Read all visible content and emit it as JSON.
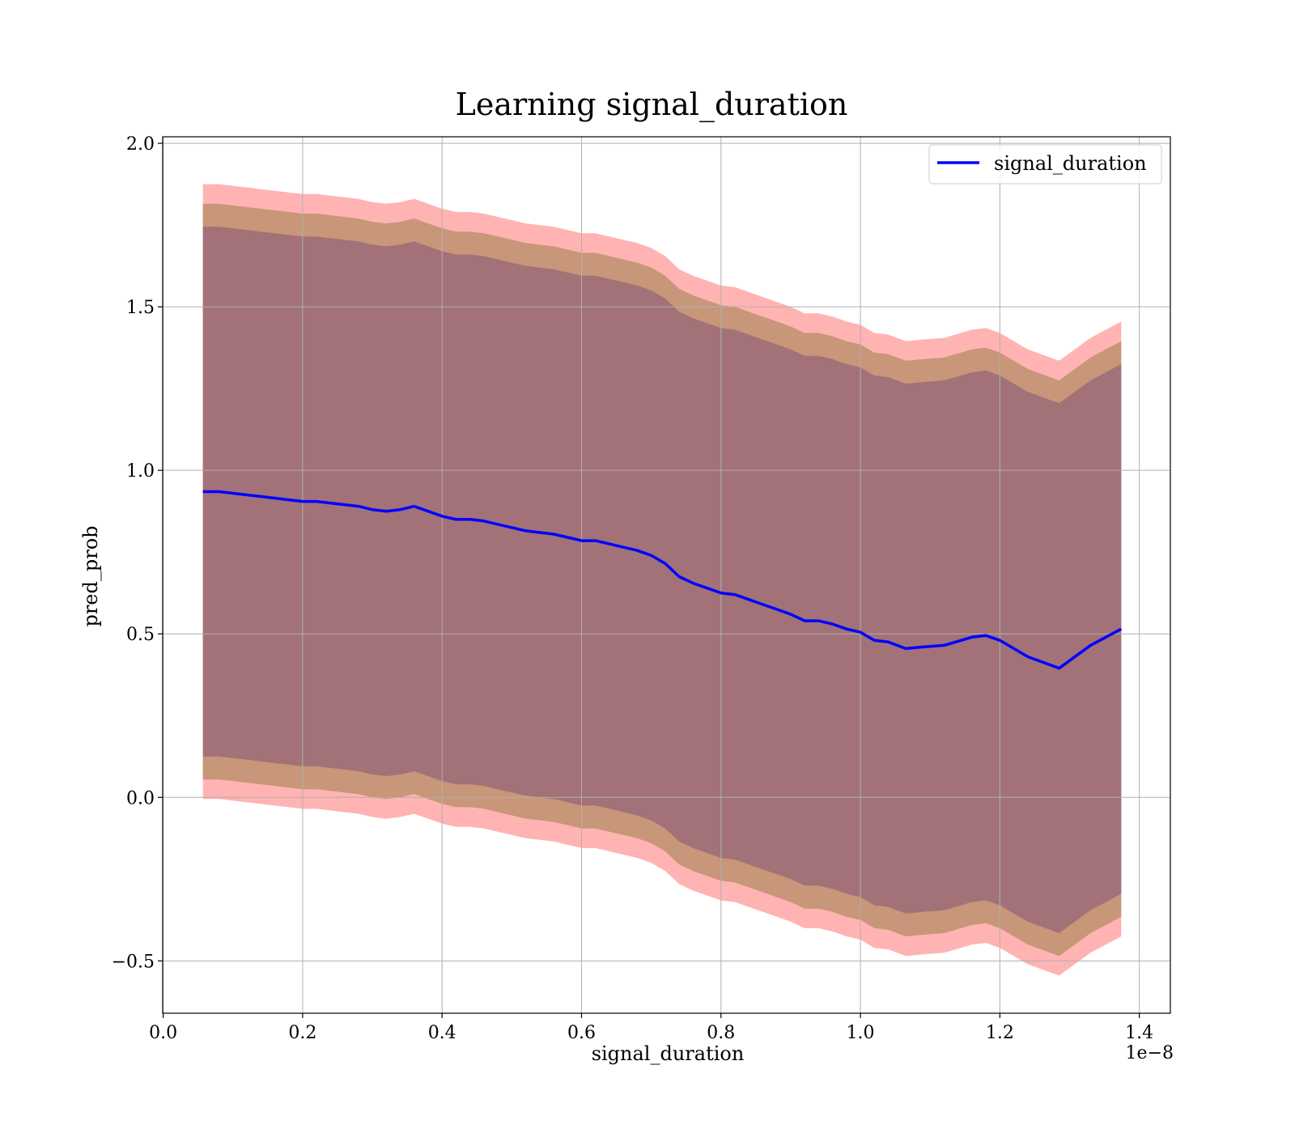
{
  "chart_data": {
    "type": "area",
    "title": "Learning signal_duration",
    "xlabel": "signal_duration",
    "ylabel": "pred_prob",
    "x_offset_label": "1e−8",
    "xlim": [
      -0.0007,
      1.4445
    ],
    "ylim": [
      -0.66,
      2.02
    ],
    "x_ticks": [
      0.0,
      0.2,
      0.4,
      0.6,
      0.8,
      1.0,
      1.2,
      1.4
    ],
    "x_tick_labels": [
      "0.0",
      "0.2",
      "0.4",
      "0.6",
      "0.8",
      "1.0",
      "1.2",
      "1.4"
    ],
    "y_ticks": [
      -0.5,
      0.0,
      0.5,
      1.0,
      1.5,
      2.0
    ],
    "y_tick_labels": [
      "−0.5",
      "0.0",
      "0.5",
      "1.0",
      "1.5",
      "2.0"
    ],
    "grid": true,
    "legend_position": "top-right",
    "colors": {
      "line": "#0000ff",
      "band_outer": "#ff8080",
      "band_middle": "#b08a60",
      "band_inner": "#a07078",
      "grid": "#b0b0b0"
    },
    "x": [
      0.057,
      0.08,
      0.1,
      0.12,
      0.14,
      0.16,
      0.18,
      0.2,
      0.22,
      0.24,
      0.26,
      0.28,
      0.3,
      0.32,
      0.34,
      0.36,
      0.38,
      0.4,
      0.42,
      0.44,
      0.46,
      0.48,
      0.5,
      0.52,
      0.54,
      0.56,
      0.58,
      0.6,
      0.62,
      0.64,
      0.66,
      0.68,
      0.7,
      0.72,
      0.74,
      0.76,
      0.78,
      0.8,
      0.82,
      0.84,
      0.86,
      0.88,
      0.9,
      0.92,
      0.94,
      0.96,
      0.98,
      1.0,
      1.02,
      1.04,
      1.065,
      1.09,
      1.12,
      1.16,
      1.18,
      1.2,
      1.24,
      1.285,
      1.33,
      1.374
    ],
    "series": [
      {
        "name": "signal_duration",
        "values": [
          0.935,
          0.935,
          0.93,
          0.925,
          0.92,
          0.915,
          0.91,
          0.905,
          0.905,
          0.9,
          0.895,
          0.89,
          0.88,
          0.875,
          0.88,
          0.89,
          0.875,
          0.86,
          0.85,
          0.85,
          0.845,
          0.835,
          0.825,
          0.815,
          0.81,
          0.805,
          0.795,
          0.785,
          0.785,
          0.775,
          0.765,
          0.755,
          0.74,
          0.715,
          0.675,
          0.655,
          0.64,
          0.625,
          0.62,
          0.605,
          0.59,
          0.575,
          0.56,
          0.54,
          0.54,
          0.53,
          0.515,
          0.505,
          0.48,
          0.475,
          0.455,
          0.46,
          0.465,
          0.49,
          0.495,
          0.48,
          0.43,
          0.395,
          0.465,
          0.515
        ]
      }
    ],
    "bands": [
      {
        "level": "outer",
        "half_width": 0.94
      },
      {
        "level": "middle",
        "half_width": 0.88
      },
      {
        "level": "inner",
        "half_width": 0.81
      }
    ]
  }
}
